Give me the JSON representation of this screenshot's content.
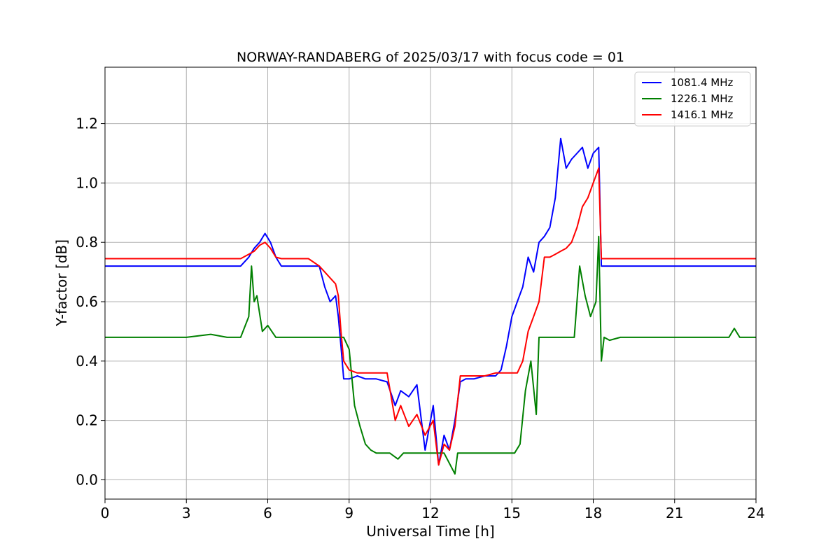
{
  "chart_data": {
    "type": "line",
    "title": "NORWAY-RANDABERG of 2025/03/17 with focus code = 01",
    "xlabel": "Universal Time [h]",
    "ylabel": "Y-factor [dB]",
    "xlim": [
      0,
      24
    ],
    "ylim": [
      -0.065,
      1.39
    ],
    "x_ticks": [
      0,
      3,
      6,
      9,
      12,
      15,
      18,
      21,
      24
    ],
    "x_tick_labels": [
      "0",
      "3",
      "6",
      "9",
      "12",
      "15",
      "18",
      "21",
      "24"
    ],
    "y_ticks": [
      0.0,
      0.2,
      0.4,
      0.6,
      0.8,
      1.0,
      1.2
    ],
    "y_tick_labels": [
      "0.0",
      "0.2",
      "0.4",
      "0.6",
      "0.8",
      "1.0",
      "1.2"
    ],
    "grid": true,
    "legend_position": "top-right",
    "series": [
      {
        "name": "1081.4 MHz",
        "color": "#0000ff",
        "x": [
          0.0,
          0.5,
          1.0,
          2.0,
          3.0,
          4.0,
          5.0,
          5.3,
          5.5,
          5.7,
          5.9,
          6.1,
          6.3,
          6.5,
          7.0,
          7.5,
          7.9,
          8.1,
          8.3,
          8.5,
          8.6,
          8.7,
          8.8,
          9.0,
          9.3,
          9.6,
          10.0,
          10.4,
          10.7,
          10.9,
          11.2,
          11.5,
          11.8,
          12.1,
          12.3,
          12.5,
          12.7,
          12.9,
          13.1,
          13.3,
          13.6,
          14.0,
          14.4,
          14.6,
          14.8,
          15.0,
          15.2,
          15.4,
          15.6,
          15.8,
          16.0,
          16.2,
          16.4,
          16.6,
          16.8,
          17.0,
          17.2,
          17.4,
          17.6,
          17.8,
          18.0,
          18.2,
          18.3,
          18.5,
          19.0,
          20.0,
          21.0,
          22.0,
          23.0,
          24.0
        ],
        "values": [
          0.72,
          0.72,
          0.72,
          0.72,
          0.72,
          0.72,
          0.72,
          0.75,
          0.78,
          0.8,
          0.83,
          0.8,
          0.75,
          0.72,
          0.72,
          0.72,
          0.72,
          0.65,
          0.6,
          0.62,
          0.55,
          0.45,
          0.34,
          0.34,
          0.35,
          0.34,
          0.34,
          0.33,
          0.25,
          0.3,
          0.28,
          0.32,
          0.1,
          0.25,
          0.05,
          0.15,
          0.1,
          0.2,
          0.33,
          0.34,
          0.34,
          0.35,
          0.35,
          0.37,
          0.45,
          0.55,
          0.6,
          0.65,
          0.75,
          0.7,
          0.8,
          0.82,
          0.85,
          0.95,
          1.15,
          1.05,
          1.08,
          1.1,
          1.12,
          1.05,
          1.1,
          1.12,
          0.72,
          0.72,
          0.72,
          0.72,
          0.72,
          0.72,
          0.72,
          0.72
        ]
      },
      {
        "name": "1226.1 MHz",
        "color": "#008000",
        "x": [
          0.0,
          0.5,
          1.0,
          2.0,
          3.0,
          3.9,
          4.5,
          5.0,
          5.3,
          5.4,
          5.5,
          5.6,
          5.8,
          6.0,
          6.3,
          6.5,
          7.0,
          7.5,
          8.0,
          8.5,
          8.8,
          9.0,
          9.2,
          9.4,
          9.6,
          9.8,
          10.0,
          10.5,
          10.8,
          11.0,
          11.5,
          12.0,
          12.5,
          12.9,
          13.0,
          13.5,
          14.0,
          14.5,
          14.9,
          15.1,
          15.3,
          15.5,
          15.7,
          15.9,
          16.0,
          16.3,
          16.6,
          17.0,
          17.3,
          17.5,
          17.7,
          17.9,
          18.1,
          18.2,
          18.3,
          18.4,
          18.6,
          19.0,
          20.0,
          21.0,
          22.0,
          23.0,
          23.2,
          23.4,
          24.0
        ],
        "values": [
          0.48,
          0.48,
          0.48,
          0.48,
          0.48,
          0.49,
          0.48,
          0.48,
          0.55,
          0.72,
          0.6,
          0.62,
          0.5,
          0.52,
          0.48,
          0.48,
          0.48,
          0.48,
          0.48,
          0.48,
          0.48,
          0.44,
          0.25,
          0.18,
          0.12,
          0.1,
          0.09,
          0.09,
          0.07,
          0.09,
          0.09,
          0.09,
          0.09,
          0.02,
          0.09,
          0.09,
          0.09,
          0.09,
          0.09,
          0.09,
          0.12,
          0.3,
          0.4,
          0.22,
          0.48,
          0.48,
          0.48,
          0.48,
          0.48,
          0.72,
          0.62,
          0.55,
          0.6,
          0.82,
          0.4,
          0.48,
          0.47,
          0.48,
          0.48,
          0.48,
          0.48,
          0.48,
          0.51,
          0.48,
          0.48
        ]
      },
      {
        "name": "1416.1 MHz",
        "color": "#ff0000",
        "x": [
          0.0,
          0.5,
          1.0,
          2.0,
          3.0,
          4.0,
          5.0,
          5.3,
          5.5,
          5.7,
          5.9,
          6.1,
          6.3,
          6.5,
          7.0,
          7.5,
          7.9,
          8.1,
          8.3,
          8.5,
          8.6,
          8.7,
          8.8,
          9.0,
          9.3,
          9.6,
          10.0,
          10.4,
          10.7,
          10.9,
          11.2,
          11.5,
          11.8,
          12.1,
          12.3,
          12.5,
          12.7,
          12.9,
          13.1,
          13.3,
          13.6,
          14.0,
          14.4,
          14.6,
          14.8,
          15.0,
          15.2,
          15.4,
          15.6,
          15.8,
          16.0,
          16.2,
          16.4,
          16.6,
          16.8,
          17.0,
          17.2,
          17.4,
          17.6,
          17.8,
          18.0,
          18.2,
          18.3,
          18.5,
          19.0,
          20.0,
          21.0,
          22.0,
          23.0,
          24.0
        ],
        "values": [
          0.745,
          0.745,
          0.745,
          0.745,
          0.745,
          0.745,
          0.745,
          0.76,
          0.77,
          0.79,
          0.8,
          0.78,
          0.75,
          0.745,
          0.745,
          0.745,
          0.72,
          0.7,
          0.68,
          0.66,
          0.62,
          0.5,
          0.4,
          0.37,
          0.36,
          0.36,
          0.36,
          0.36,
          0.2,
          0.25,
          0.18,
          0.22,
          0.15,
          0.2,
          0.05,
          0.12,
          0.1,
          0.18,
          0.35,
          0.35,
          0.35,
          0.35,
          0.36,
          0.36,
          0.36,
          0.36,
          0.36,
          0.4,
          0.5,
          0.55,
          0.6,
          0.75,
          0.75,
          0.76,
          0.77,
          0.78,
          0.8,
          0.85,
          0.92,
          0.95,
          1.0,
          1.05,
          0.745,
          0.745,
          0.745,
          0.745,
          0.745,
          0.745,
          0.745,
          0.745
        ]
      }
    ]
  }
}
